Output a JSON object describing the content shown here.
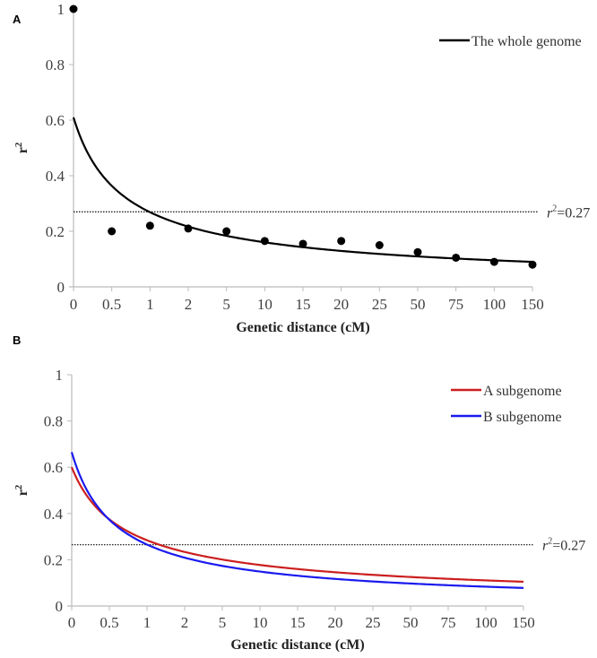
{
  "chart_data": [
    {
      "type": "scatter",
      "panel_label": "A",
      "categories": [
        "0",
        "0.5",
        "1",
        "2",
        "5",
        "10",
        "15",
        "20",
        "25",
        "50",
        "75",
        "100",
        "150"
      ],
      "xlabel": "Genetic distance (cM)",
      "ylabel": "r",
      "ylabel_sup": "2",
      "ylim": [
        0,
        1
      ],
      "yticks": [
        "0",
        "0.2",
        "0.4",
        "0.6",
        "0.8",
        "1"
      ],
      "points": [
        1.0,
        0.2,
        0.22,
        0.21,
        0.2,
        0.165,
        0.155,
        0.165,
        0.15,
        0.125,
        0.105,
        0.09,
        0.08
      ],
      "series": [
        {
          "name": "The whole genome",
          "color": "#000000",
          "fit": {
            "type": "power",
            "a": 0.61,
            "b": 0.746
          }
        }
      ],
      "threshold": {
        "value": 0.27,
        "label_r": "r",
        "label_sup": "2",
        "label_rest": "=0.27"
      },
      "legend": "top-right"
    },
    {
      "type": "line",
      "panel_label": "B",
      "categories": [
        "0",
        "0.5",
        "1",
        "2",
        "5",
        "10",
        "15",
        "20",
        "25",
        "50",
        "75",
        "100",
        "150"
      ],
      "xlabel": "Genetic distance (cM)",
      "ylabel": "r",
      "ylabel_sup": "2",
      "ylim": [
        0,
        1
      ],
      "yticks": [
        "0",
        "0.2",
        "0.4",
        "0.6",
        "0.8",
        "1"
      ],
      "series": [
        {
          "name": "A subgenome",
          "color": "#cc1f1f",
          "fit": {
            "type": "power",
            "a": 0.6,
            "b": 0.68
          }
        },
        {
          "name": "B subgenome",
          "color": "#1a1aee",
          "fit": {
            "type": "power",
            "a": 0.665,
            "b": 0.835
          }
        }
      ],
      "threshold": {
        "value": 0.265,
        "label_r": "r",
        "label_sup": "2",
        "label_rest": "=0.27"
      },
      "legend": "top-right"
    }
  ]
}
